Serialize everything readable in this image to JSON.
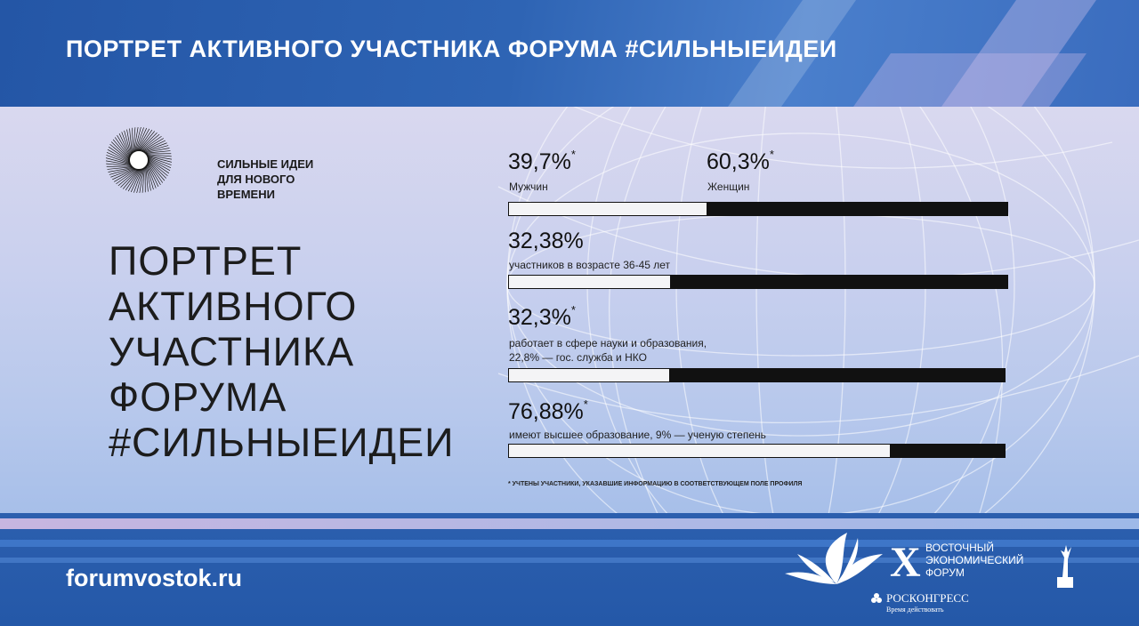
{
  "header": {
    "title": "ПОРТРЕТ АКТИВНОГО УЧАСТНИКА ФОРУМА #СИЛЬНЫЕИДЕИ"
  },
  "brand": {
    "logo_lines": [
      "СИЛЬНЫЕ ИДЕИ",
      "ДЛЯ НОВОГО",
      "ВРЕМЕНИ"
    ],
    "logo_icon": "radial-burst-icon"
  },
  "main": {
    "title_lines": [
      "ПОРТРЕТ",
      "АКТИВНОГО",
      "УЧАСТНИКА",
      "ФОРУМА",
      "#СИЛЬНЫЕИДЕИ"
    ]
  },
  "stats": {
    "gender": {
      "male_value": "39,7%",
      "male_mark": "*",
      "male_label": "Мужчин",
      "female_value": "60,3%",
      "female_mark": "*",
      "female_label": "Женщин",
      "fill_fraction": 0.397
    },
    "age": {
      "value": "32,38%",
      "caption": "участников в возрасте 36-45 лет",
      "fill_fraction": 0.3238
    },
    "field": {
      "value": "32,3%",
      "mark": "*",
      "caption_line1": "работает в сфере науки и образования,",
      "caption_line2": "22,8% — гос. служба и НКО",
      "fill_fraction": 0.323
    },
    "education": {
      "value": "76,88%",
      "mark": "*",
      "caption": "имеют высшее образование, 9% — ученую степень",
      "fill_fraction": 0.7688
    },
    "footnote": "* УЧТЕНЫ УЧАСТНИКИ, УКАЗАВШИЕ ИНФОРМАЦИЮ В СООТВЕТСТВУЮЩЕМ ПОЛЕ ПРОФИЛЯ"
  },
  "footer": {
    "url": "forumvostok.ru",
    "eef_roman": "X",
    "eef_lines": [
      "ВОСТОЧНЫЙ",
      "ЭКОНОМИЧЕСКИЙ",
      "ФОРУМ"
    ],
    "roscongress": "РОСКОНГРЕСС",
    "roscongress_tagline": "Время действовать"
  },
  "colors": {
    "accent_blue": "#2b5fae",
    "bar_dark": "#111111",
    "bar_light": "#f4f4f6"
  }
}
